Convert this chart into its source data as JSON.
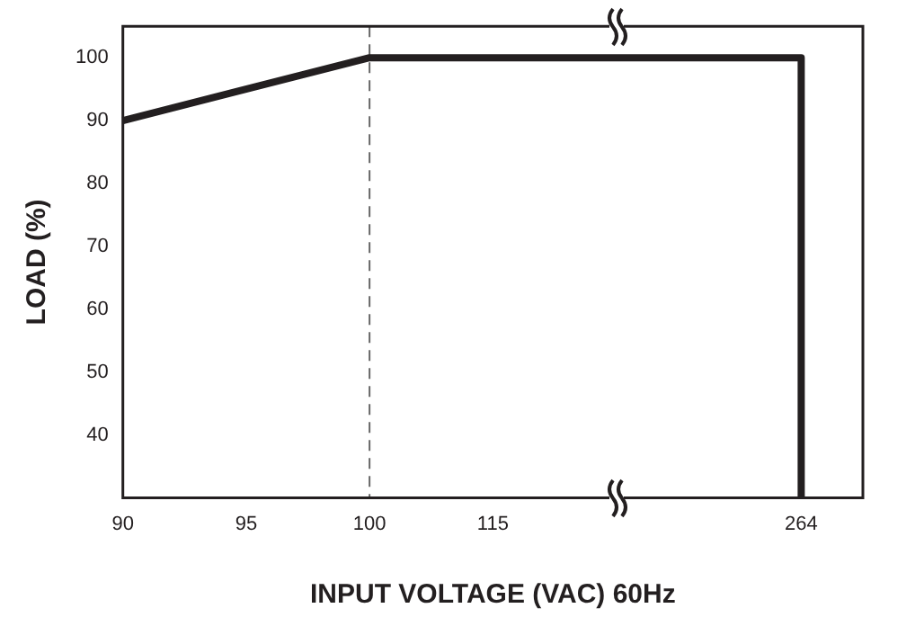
{
  "chart_data": {
    "type": "line",
    "xlabel": "INPUT VOLTAGE (VAC) 60Hz",
    "ylabel": "LOAD (%)",
    "categories": [
      "90",
      null,
      "95",
      null,
      "100",
      null,
      "115",
      null,
      null,
      null,
      null,
      "264",
      null
    ],
    "series": [
      {
        "color": "#231f20",
        "x": [
          "90",
          "100",
          "264",
          "264"
        ],
        "values": [
          90,
          100,
          100,
          30
        ]
      }
    ],
    "ylim": [
      30,
      105
    ],
    "yticks": [
      40,
      50,
      60,
      70,
      80,
      90,
      100
    ],
    "ref_lines": [
      {
        "axis": "x",
        "value": "100",
        "color": "#666666",
        "line_style": "dashed"
      }
    ],
    "grid": false,
    "legend": false,
    "marker": "none",
    "line_style": "solid"
  }
}
